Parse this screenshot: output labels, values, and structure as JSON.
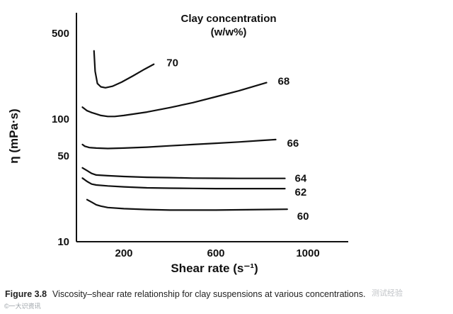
{
  "chart_data": {
    "type": "line",
    "title": "",
    "legend_title_line1": "Clay concentration",
    "legend_title_line2": "(w/w%)",
    "xlabel": "Shear rate (s⁻¹)",
    "ylabel": "η (mPa·s)",
    "y_scale": "log",
    "xlim": [
      -40,
      1170
    ],
    "ylim": [
      10,
      600
    ],
    "x_ticks": [
      200,
      600,
      1000
    ],
    "x_tick_labels": [
      "200",
      "600",
      "1000"
    ],
    "y_ticks": [
      10,
      50,
      100,
      500
    ],
    "y_tick_labels": [
      "10",
      "50",
      "100",
      "500"
    ],
    "series": [
      {
        "name": "70",
        "x": [
          70,
          75,
          85,
          100,
          120,
          150,
          190,
          240,
          290,
          330
        ],
        "y": [
          360,
          245,
          195,
          183,
          180,
          185,
          200,
          225,
          255,
          280
        ]
      },
      {
        "name": "68",
        "x": [
          20,
          40,
          60,
          80,
          100,
          130,
          160,
          200,
          300,
          400,
          500,
          600,
          700,
          820
        ],
        "y": [
          125,
          117,
          113,
          110,
          107,
          105,
          105,
          107,
          114,
          124,
          136,
          152,
          170,
          198
        ]
      },
      {
        "name": "66",
        "x": [
          20,
          30,
          50,
          80,
          130,
          200,
          300,
          400,
          500,
          600,
          700,
          800,
          860
        ],
        "y": [
          62,
          60,
          58.5,
          58,
          57.5,
          58,
          59,
          60.5,
          62,
          63.5,
          65,
          67,
          68
        ]
      },
      {
        "name": "64",
        "x": [
          20,
          40,
          60,
          80,
          130,
          200,
          300,
          400,
          500,
          600,
          700,
          800,
          900
        ],
        "y": [
          40,
          38,
          36,
          35,
          34.5,
          34,
          33.5,
          33.3,
          33,
          32.9,
          32.8,
          32.8,
          32.8
        ]
      },
      {
        "name": "62",
        "x": [
          20,
          40,
          60,
          80,
          130,
          200,
          300,
          400,
          500,
          600,
          700,
          800,
          900
        ],
        "y": [
          33,
          31,
          29.5,
          29,
          28.5,
          28,
          27.5,
          27.3,
          27.2,
          27.1,
          27.1,
          27.1,
          27.1
        ]
      },
      {
        "name": "60",
        "x": [
          40,
          60,
          80,
          100,
          130,
          200,
          300,
          400,
          500,
          600,
          700,
          800,
          910
        ],
        "y": [
          22,
          21,
          20,
          19.5,
          19,
          18.6,
          18.3,
          18.1,
          18.1,
          18.1,
          18.2,
          18.3,
          18.4
        ]
      }
    ]
  },
  "caption": {
    "label": "Figure 3.8",
    "text": "Viscosity–shear rate relationship for clay suspensions at various co",
    "text_tail": "ncentrations."
  },
  "watermark": {
    "left": "©一大识资讯",
    "right": "测试经验"
  }
}
